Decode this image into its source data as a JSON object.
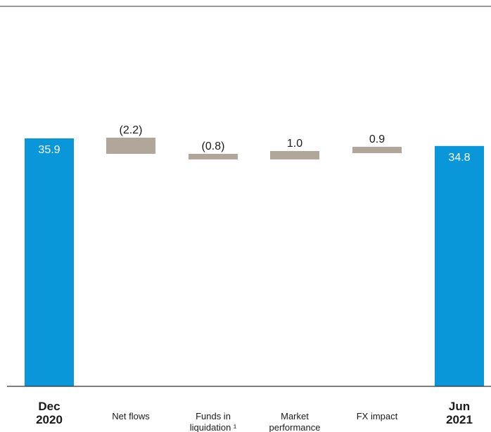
{
  "chart_data": {
    "type": "bar",
    "subtype": "waterfall",
    "title": "",
    "xlabel": "",
    "ylabel": "",
    "categories": [
      {
        "lines": [
          "Dec",
          "2020"
        ],
        "bold": true
      },
      {
        "lines": [
          "Net flows"
        ],
        "bold": false
      },
      {
        "lines": [
          "Funds in",
          "liquidation ¹"
        ],
        "bold": false
      },
      {
        "lines": [
          "Market",
          "performance"
        ],
        "bold": false
      },
      {
        "lines": [
          "FX impact"
        ],
        "bold": false
      },
      {
        "lines": [
          "Jun",
          "2021"
        ],
        "bold": true
      }
    ],
    "values": [
      35.9,
      -2.2,
      -0.8,
      1.0,
      0.9,
      34.8
    ],
    "bar_kinds": [
      "total",
      "change",
      "change",
      "change",
      "change",
      "total"
    ],
    "data_labels": [
      "35.9",
      "(2.2)",
      "(0.8)",
      "1.0",
      "0.9",
      "34.8"
    ],
    "ylim": [
      0,
      35.9
    ],
    "grid": false,
    "legend": "none",
    "colors": {
      "total": "#0a97d9",
      "change": "#b0a69a",
      "total_label": "#ffffff",
      "change_label": "#1a1a1a",
      "axis": "#333333"
    }
  }
}
